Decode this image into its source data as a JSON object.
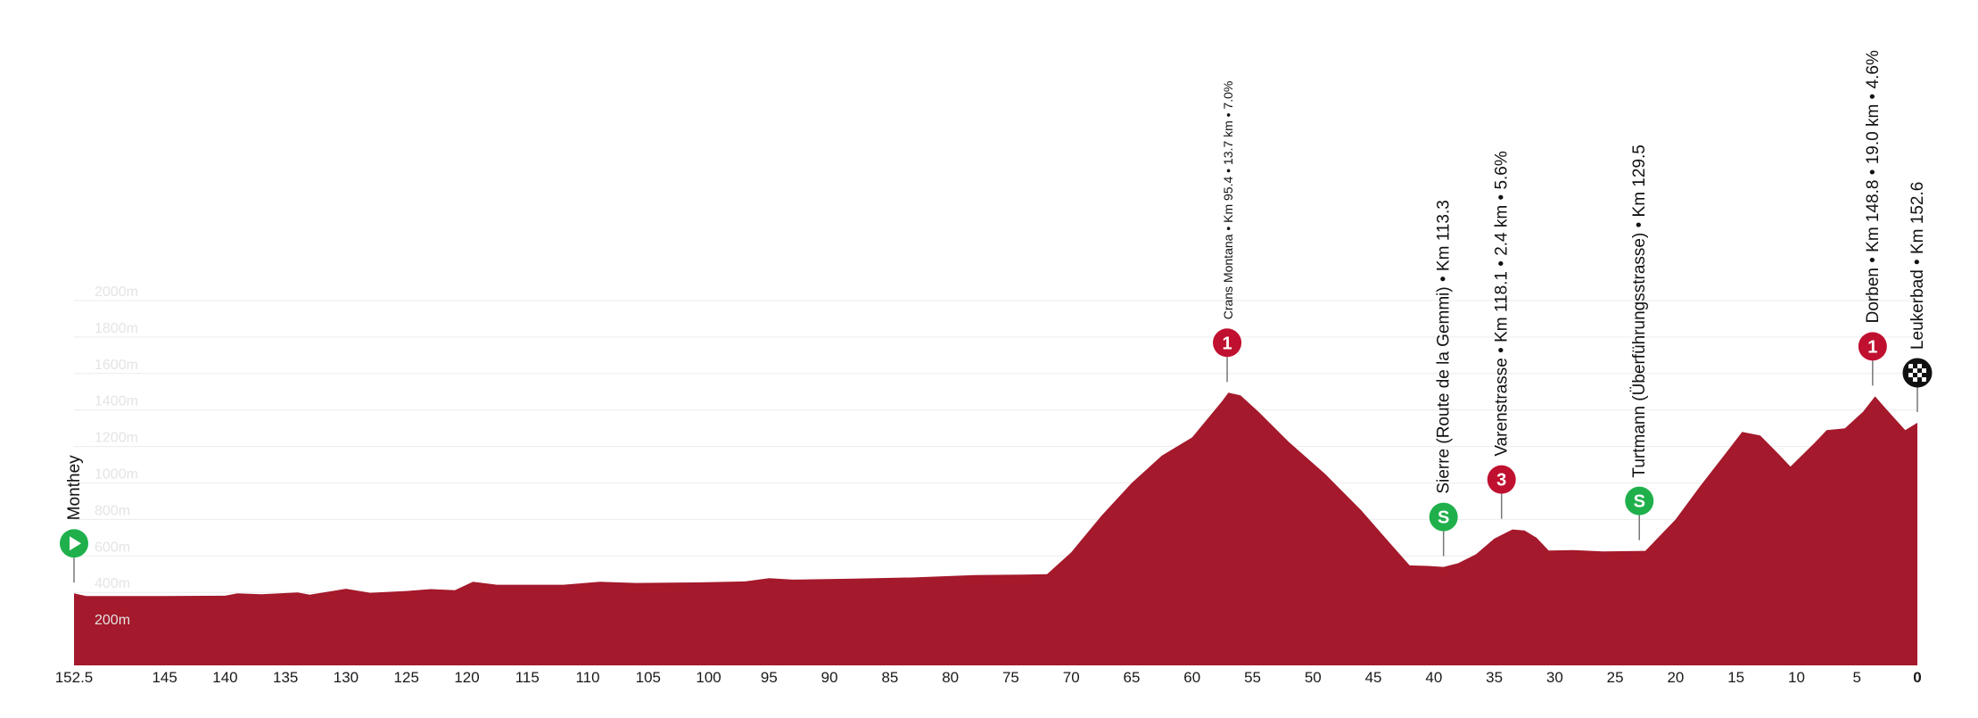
{
  "chart_data": {
    "type": "area",
    "title": "",
    "xlabel": "",
    "ylabel": "",
    "x_direction": "reversed (km remaining to finish)",
    "xlim": [
      152.5,
      0
    ],
    "ylim": [
      0,
      2000
    ],
    "x_ticks": [
      "152.5",
      "145",
      "140",
      "135",
      "130",
      "125",
      "120",
      "115",
      "110",
      "105",
      "100",
      "95",
      "90",
      "85",
      "80",
      "75",
      "70",
      "65",
      "60",
      "55",
      "50",
      "45",
      "40",
      "35",
      "30",
      "25",
      "20",
      "15",
      "10",
      "5",
      "0"
    ],
    "y_ticks": [
      "200m",
      "400m",
      "600m",
      "800m",
      "1000m",
      "1200m",
      "1400m",
      "1600m",
      "1800m",
      "2000m"
    ],
    "fill_color": "#a4192b",
    "grid": true,
    "profile": [
      {
        "x": 152.5,
        "y": 395
      },
      {
        "x": 151.5,
        "y": 380
      },
      {
        "x": 145,
        "y": 380
      },
      {
        "x": 140,
        "y": 382
      },
      {
        "x": 139,
        "y": 395
      },
      {
        "x": 137,
        "y": 390
      },
      {
        "x": 134,
        "y": 400
      },
      {
        "x": 133,
        "y": 388
      },
      {
        "x": 130,
        "y": 420
      },
      {
        "x": 128,
        "y": 398
      },
      {
        "x": 125,
        "y": 408
      },
      {
        "x": 123,
        "y": 418
      },
      {
        "x": 121,
        "y": 412
      },
      {
        "x": 119.5,
        "y": 458
      },
      {
        "x": 117.5,
        "y": 442
      },
      {
        "x": 112,
        "y": 442
      },
      {
        "x": 109,
        "y": 458
      },
      {
        "x": 106,
        "y": 452
      },
      {
        "x": 101,
        "y": 455
      },
      {
        "x": 97,
        "y": 460
      },
      {
        "x": 95,
        "y": 478
      },
      {
        "x": 93,
        "y": 470
      },
      {
        "x": 88,
        "y": 476
      },
      {
        "x": 83,
        "y": 482
      },
      {
        "x": 78,
        "y": 495
      },
      {
        "x": 74,
        "y": 498
      },
      {
        "x": 72,
        "y": 500
      },
      {
        "x": 70,
        "y": 620
      },
      {
        "x": 67.5,
        "y": 820
      },
      {
        "x": 65,
        "y": 1000
      },
      {
        "x": 62.5,
        "y": 1150
      },
      {
        "x": 60,
        "y": 1250
      },
      {
        "x": 57.5,
        "y": 1450
      },
      {
        "x": 57,
        "y": 1495
      },
      {
        "x": 56,
        "y": 1480
      },
      {
        "x": 54.5,
        "y": 1390
      },
      {
        "x": 52,
        "y": 1225
      },
      {
        "x": 49,
        "y": 1050
      },
      {
        "x": 46,
        "y": 850
      },
      {
        "x": 43.5,
        "y": 660
      },
      {
        "x": 42,
        "y": 548
      },
      {
        "x": 40.5,
        "y": 545
      },
      {
        "x": 39.2,
        "y": 540
      },
      {
        "x": 38,
        "y": 560
      },
      {
        "x": 36.5,
        "y": 610
      },
      {
        "x": 35,
        "y": 695
      },
      {
        "x": 33.5,
        "y": 745
      },
      {
        "x": 32.5,
        "y": 740
      },
      {
        "x": 31.5,
        "y": 700
      },
      {
        "x": 30.5,
        "y": 630
      },
      {
        "x": 28.5,
        "y": 632
      },
      {
        "x": 26,
        "y": 625
      },
      {
        "x": 22.5,
        "y": 628
      },
      {
        "x": 20,
        "y": 800
      },
      {
        "x": 18,
        "y": 980
      },
      {
        "x": 16,
        "y": 1150
      },
      {
        "x": 14.5,
        "y": 1280
      },
      {
        "x": 13,
        "y": 1260
      },
      {
        "x": 11.5,
        "y": 1160
      },
      {
        "x": 10.5,
        "y": 1090
      },
      {
        "x": 8.5,
        "y": 1220
      },
      {
        "x": 7.5,
        "y": 1290
      },
      {
        "x": 6,
        "y": 1300
      },
      {
        "x": 4.5,
        "y": 1390
      },
      {
        "x": 3.5,
        "y": 1475
      },
      {
        "x": 2.5,
        "y": 1400
      },
      {
        "x": 1,
        "y": 1290
      },
      {
        "x": 0,
        "y": 1330
      }
    ],
    "points_of_interest": [
      {
        "label": "Monthey",
        "km": 152.5,
        "elevation": 395,
        "marker": "start",
        "color": "#1fb04b",
        "glyph": "",
        "small": false
      },
      {
        "label": "Crans Montana • Km 95.4 • 13.7 km • 7.0%",
        "km": 57.1,
        "elevation": 1495,
        "marker": "climb-cat-1",
        "color": "#c01030",
        "glyph": "1",
        "small": true
      },
      {
        "label": "Sierre (Route de la Gemmi) • Km 113.3",
        "km": 39.2,
        "elevation": 540,
        "marker": "sprint",
        "color": "#1fb04b",
        "glyph": "S",
        "small": false
      },
      {
        "label": "Varenstrasse • Km 118.1 • 2.4 km • 5.6%",
        "km": 34.4,
        "elevation": 745,
        "marker": "climb-cat-3",
        "color": "#c01030",
        "glyph": "3",
        "small": false
      },
      {
        "label": "Turtmann (Überführungsstrasse) • Km 129.5",
        "km": 23.0,
        "elevation": 628,
        "marker": "sprint",
        "color": "#1fb04b",
        "glyph": "S",
        "small": false
      },
      {
        "label": "Dorben • Km 148.8 • 19.0 km • 4.6%",
        "km": 3.7,
        "elevation": 1475,
        "marker": "climb-cat-1",
        "color": "#c01030",
        "glyph": "1",
        "small": false
      },
      {
        "label": "Leukerbad • Km 152.6",
        "km": 0,
        "elevation": 1330,
        "marker": "finish",
        "color": "#111111",
        "glyph": "",
        "small": false
      }
    ]
  }
}
